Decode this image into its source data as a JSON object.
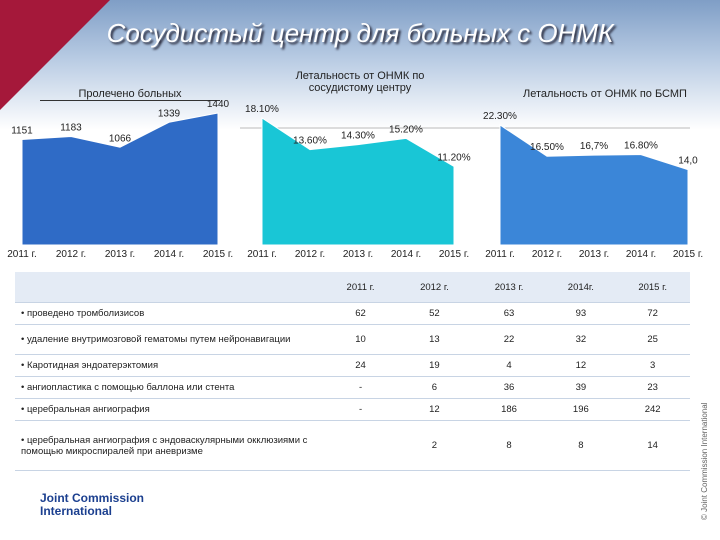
{
  "title": "Сосудистый центр для больных с ОНМК",
  "chart_data": [
    {
      "type": "area",
      "title": "Пролечено больных",
      "color": "#2f6bc6",
      "categories": [
        "2011 г.",
        "2012 г.",
        "2013 г.",
        "2014 г.",
        "2015 г."
      ],
      "values": [
        1151,
        1183,
        1066,
        1339,
        1440
      ]
    },
    {
      "type": "area",
      "title": "Летальность от ОНМК по сосудистому центру",
      "color": "#19c6d6",
      "categories": [
        "2011 г.",
        "2012 г.",
        "2013 г.",
        "2014 г.",
        "2015 г."
      ],
      "values": [
        18.1,
        13.6,
        14.3,
        15.2,
        11.2
      ],
      "value_labels": [
        "18.10%",
        "13.60%",
        "14.30%",
        "15.20%",
        "11.20%"
      ]
    },
    {
      "type": "area",
      "title": "Летальность от ОНМК по БСМП",
      "color": "#3b86d8",
      "categories": [
        "2011 г.",
        "2012 г.",
        "2013 г.",
        "2014 г.",
        "2015 г."
      ],
      "values": [
        22.3,
        16.5,
        16.7,
        16.8,
        14.0
      ],
      "value_labels": [
        "22.30%",
        "16.50%",
        "16,7%",
        "16.80%",
        "14,0"
      ]
    }
  ],
  "table": {
    "header": [
      "2011 г.",
      "2012 г.",
      "2013 г.",
      "2014г.",
      "2015 г."
    ],
    "rows": [
      [
        "проведено тромболизисов",
        62,
        52,
        63,
        93,
        72
      ],
      [
        "удаление внутримозговой гематомы путем нейронавигации",
        10,
        13,
        22,
        32,
        25
      ],
      [
        "Каротидная эндоатерэктомия",
        24,
        19,
        4,
        12,
        3
      ],
      [
        "ангиопластика с помощью баллона или стента",
        "-",
        6,
        36,
        39,
        23
      ],
      [
        "церебральная ангиография",
        "-",
        12,
        186,
        196,
        242
      ],
      [
        "церебральная ангиография с эндоваскулярными окклюзиями с помощью микроспиралей при аневризме",
        null,
        2,
        8,
        8,
        14
      ]
    ]
  },
  "logo": [
    "Joint Commission",
    "International"
  ],
  "copyright": "© Joint Commission International"
}
